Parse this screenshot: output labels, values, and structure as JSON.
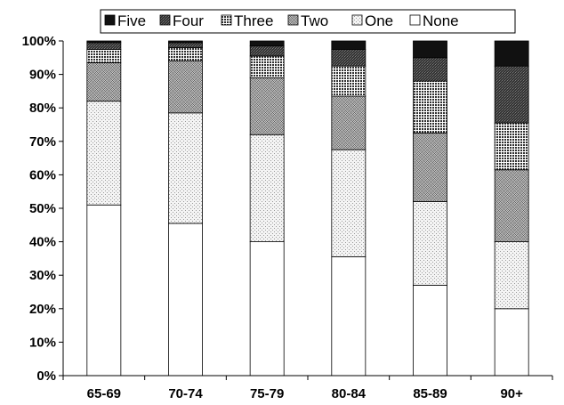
{
  "chart_data": {
    "type": "bar",
    "stacked": true,
    "percent_stacked": true,
    "title": "",
    "xlabel": "",
    "ylabel": "",
    "ylim": [
      0,
      100
    ],
    "yticks": [
      "0%",
      "10%",
      "20%",
      "30%",
      "40%",
      "50%",
      "60%",
      "70%",
      "80%",
      "90%",
      "100%"
    ],
    "categories": [
      "65-69",
      "70-74",
      "75-79",
      "80-84",
      "85-89",
      "90+"
    ],
    "legend_position": "top",
    "grid": false,
    "series": [
      {
        "name": "None",
        "pattern": "white",
        "values": [
          51,
          45.5,
          40,
          35.5,
          27,
          20
        ]
      },
      {
        "name": "One",
        "pattern": "light-dots",
        "values": [
          31,
          33,
          32,
          32,
          25,
          20
        ]
      },
      {
        "name": "Two",
        "pattern": "crosshatch",
        "values": [
          11.5,
          15.5,
          17,
          16,
          20.5,
          21.5
        ]
      },
      {
        "name": "Three",
        "pattern": "dense-check",
        "values": [
          4,
          4,
          6.5,
          9,
          15.5,
          14
        ]
      },
      {
        "name": "Four",
        "pattern": "dark-hatch",
        "values": [
          2,
          1.5,
          3,
          5,
          7,
          17
        ]
      },
      {
        "name": "Five",
        "pattern": "black",
        "values": [
          0.5,
          0.5,
          1.5,
          2.5,
          5,
          7.5
        ]
      }
    ],
    "legend_order": [
      "Five",
      "Four",
      "Three",
      "Two",
      "One",
      "None"
    ]
  }
}
